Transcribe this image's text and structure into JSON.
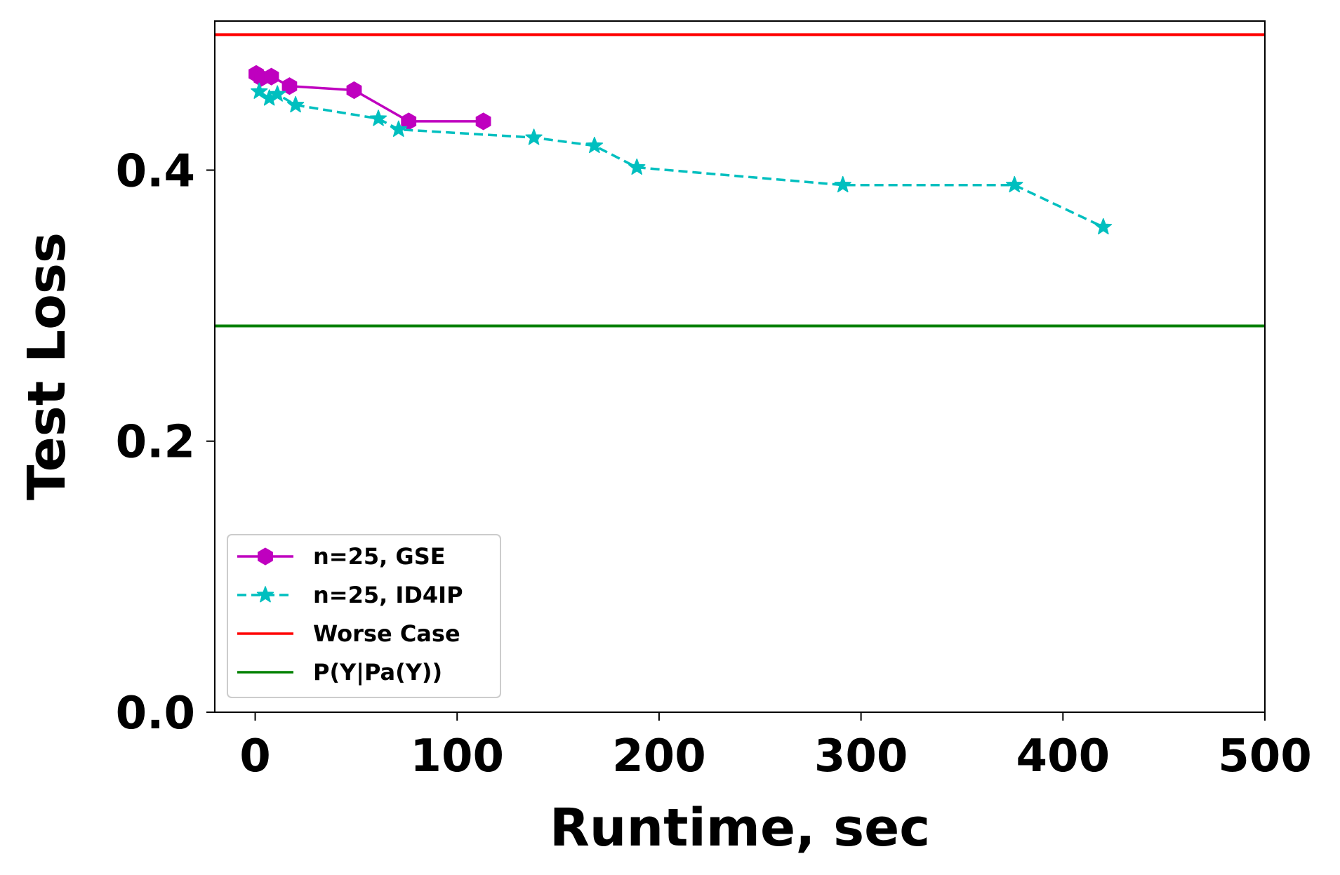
{
  "chart_data": {
    "type": "line",
    "title": "",
    "xlabel": "Runtime, sec",
    "ylabel": "Test Loss",
    "xlim": [
      -20,
      500
    ],
    "ylim": [
      0,
      0.51
    ],
    "xticks": [
      0,
      100,
      200,
      300,
      400,
      500
    ],
    "yticks": [
      0.0,
      0.2,
      0.4
    ],
    "xtick_labels": [
      "0",
      "100",
      "200",
      "300",
      "400",
      "500"
    ],
    "ytick_labels": [
      "0.0",
      "0.2",
      "0.4"
    ],
    "grid": false,
    "legend_position": "lower-left",
    "series": [
      {
        "name": "n=25, GSE",
        "color": "#bf00bf",
        "style": "solid",
        "marker": "hexagon",
        "x": [
          0.5,
          3,
          8,
          17,
          49,
          76,
          113
        ],
        "y": [
          0.471,
          0.468,
          0.469,
          0.462,
          0.459,
          0.436,
          0.436
        ]
      },
      {
        "name": "n=25, ID4IP",
        "color": "#00bfbf",
        "style": "dashed",
        "marker": "star",
        "x": [
          2,
          7,
          11,
          20,
          61,
          71,
          138,
          168,
          189,
          291,
          376,
          420
        ],
        "y": [
          0.458,
          0.453,
          0.456,
          0.448,
          0.438,
          0.43,
          0.424,
          0.418,
          0.402,
          0.389,
          0.389,
          0.358
        ]
      }
    ],
    "reference_lines": [
      {
        "name": "Worse Case",
        "color": "#ff0000",
        "y": 0.5
      },
      {
        "name": "P(Y|Pa(Y))",
        "color": "#008000",
        "y": 0.285
      }
    ]
  }
}
